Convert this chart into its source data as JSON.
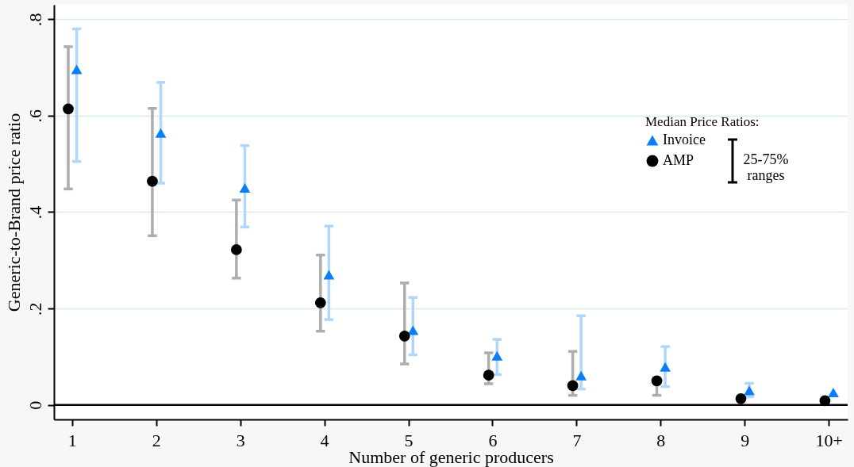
{
  "chart_data": {
    "type": "scatter",
    "xlabel": "Number of generic producers",
    "ylabel": "Generic-to-Brand price ratio",
    "categories": [
      "1",
      "2",
      "3",
      "4",
      "5",
      "6",
      "7",
      "8",
      "9",
      "10+"
    ],
    "series": [
      {
        "name": "Invoice",
        "color": "#0a7ff5",
        "marker": "triangle",
        "values": [
          0.696,
          0.564,
          0.45,
          0.27,
          0.155,
          0.102,
          0.061,
          0.079,
          0.03,
          0.026
        ],
        "errors": [
          [
            0.505,
            0.78
          ],
          [
            0.46,
            0.669
          ],
          [
            0.369,
            0.538
          ],
          [
            0.177,
            0.371
          ],
          [
            0.104,
            0.223
          ],
          [
            0.063,
            0.136
          ],
          [
            0.033,
            0.185
          ],
          [
            0.038,
            0.121
          ],
          [
            0.017,
            0.045
          ],
          null
        ]
      },
      {
        "name": "AMP",
        "color": "#000000",
        "marker": "circle",
        "values": [
          0.614,
          0.464,
          0.322,
          0.212,
          0.143,
          0.062,
          0.04,
          0.05,
          0.013,
          0.009
        ],
        "errors": [
          [
            0.448,
            0.743
          ],
          [
            0.351,
            0.615
          ],
          [
            0.263,
            0.425
          ],
          [
            0.153,
            0.311
          ],
          [
            0.085,
            0.253
          ],
          [
            0.044,
            0.108
          ],
          [
            0.02,
            0.111
          ],
          [
            0.02,
            0.055
          ],
          null,
          null
        ]
      }
    ],
    "ylim": [
      -0.03,
      0.83
    ],
    "yticks": [
      {
        "value": 0,
        "label": "0"
      },
      {
        "value": 0.2,
        "label": ".2"
      },
      {
        "value": 0.4,
        "label": ".4"
      },
      {
        "value": 0.6,
        "label": ".6"
      },
      {
        "value": 0.8,
        "label": ".8"
      }
    ],
    "grid": "y",
    "legend": "right",
    "legend_title": "Median Price Ratios:",
    "ref_lines": [
      {
        "axis": "y",
        "value": 0,
        "color": "#000000"
      }
    ],
    "annotations": [
      "25-75% ranges"
    ]
  }
}
